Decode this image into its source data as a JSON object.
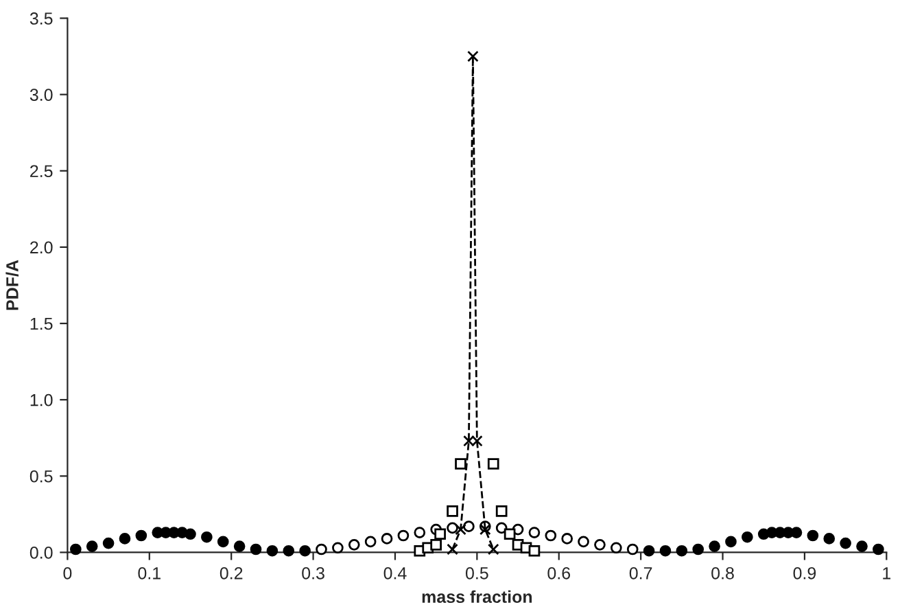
{
  "chart_data": {
    "type": "scatter",
    "xlabel": "mass fraction",
    "ylabel": "PDF/A",
    "xlim": [
      0,
      1
    ],
    "xticks": [
      0,
      0.1,
      0.2,
      0.3,
      0.4,
      0.5,
      0.6,
      0.7,
      0.8,
      0.9,
      1
    ],
    "ylim": [
      0,
      3.5
    ],
    "yticks": [
      "0.0",
      0.5,
      "1.0",
      1.5,
      "2.0",
      2.5,
      "3.0",
      3.5
    ],
    "grid": false,
    "series": [
      {
        "color": "#000000",
        "marker": "circle",
        "x": [
          0.01,
          0.03,
          0.05,
          0.07,
          0.09,
          0.11,
          0.12,
          0.13,
          0.14,
          0.15,
          0.17,
          0.19,
          0.21,
          0.23,
          0.25,
          0.27,
          0.29,
          0.71,
          0.73,
          0.75,
          0.77,
          0.79,
          0.81,
          0.83,
          0.85,
          0.86,
          0.87,
          0.88,
          0.89,
          0.91,
          0.93,
          0.95,
          0.97,
          0.99
        ],
        "values": [
          0.02,
          0.04,
          0.06,
          0.09,
          0.11,
          0.13,
          0.13,
          0.13,
          0.13,
          0.12,
          0.1,
          0.07,
          0.04,
          0.02,
          0.01,
          0.01,
          0.01,
          0.01,
          0.01,
          0.01,
          0.02,
          0.04,
          0.07,
          0.1,
          0.12,
          0.13,
          0.13,
          0.13,
          0.13,
          0.11,
          0.09,
          0.06,
          0.04,
          0.02
        ]
      },
      {
        "color": "#000000",
        "marker": "circle",
        "x": [
          0.31,
          0.33,
          0.35,
          0.37,
          0.39,
          0.41,
          0.43,
          0.45,
          0.47,
          0.49,
          0.51,
          0.53,
          0.55,
          0.57,
          0.59,
          0.61,
          0.63,
          0.65,
          0.67,
          0.69
        ],
        "values": [
          0.02,
          0.03,
          0.05,
          0.07,
          0.09,
          0.11,
          0.13,
          0.15,
          0.16,
          0.17,
          0.17,
          0.16,
          0.15,
          0.13,
          0.11,
          0.09,
          0.07,
          0.05,
          0.03,
          0.02
        ]
      },
      {
        "color": "#000000",
        "marker": "square",
        "x": [
          0.43,
          0.44,
          0.45,
          0.455,
          0.47,
          0.48,
          0.52,
          0.53,
          0.54,
          0.55,
          0.56,
          0.57
        ],
        "values": [
          0.01,
          0.03,
          0.05,
          0.12,
          0.27,
          0.58,
          0.58,
          0.27,
          0.12,
          0.05,
          0.03,
          0.01
        ]
      },
      {
        "type": "line",
        "color": "#000000",
        "marker": "cross",
        "line_style": "dashed",
        "x": [
          0.47,
          0.48,
          0.49,
          0.495,
          0.5,
          0.51,
          0.52
        ],
        "values": [
          0.02,
          0.15,
          0.73,
          3.25,
          0.73,
          0.15,
          0.02
        ]
      }
    ]
  }
}
